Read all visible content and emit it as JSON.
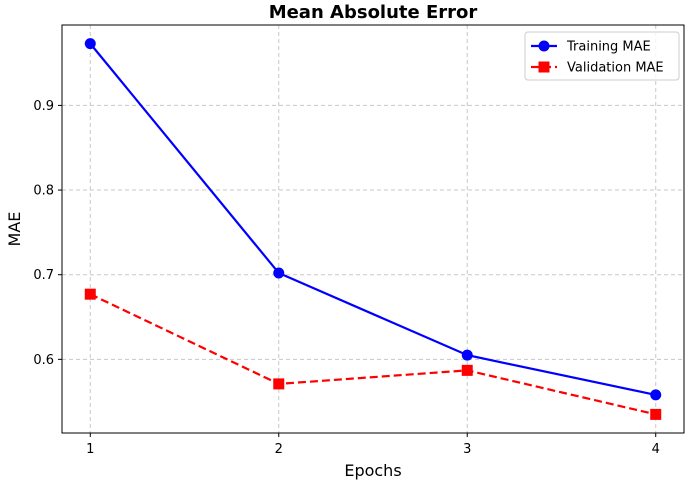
{
  "chart_data": {
    "type": "line",
    "title": "Mean Absolute Error",
    "xlabel": "Epochs",
    "ylabel": "MAE",
    "x": [
      1,
      2,
      3,
      4
    ],
    "xticks": [
      "1",
      "2",
      "3",
      "4"
    ],
    "yticks": [
      "0.6",
      "0.7",
      "0.8",
      "0.9"
    ],
    "xlim": [
      0.85,
      4.15
    ],
    "ylim": [
      0.513,
      0.995
    ],
    "grid": true,
    "legend_position": "top-right",
    "series": [
      {
        "name": "Training MAE",
        "values": [
          0.973,
          0.702,
          0.605,
          0.558
        ],
        "color": "#0000ff",
        "line_style": "solid",
        "marker": "circle"
      },
      {
        "name": "Validation MAE",
        "values": [
          0.677,
          0.571,
          0.587,
          0.535
        ],
        "color": "#ff0000",
        "line_style": "dashed",
        "marker": "square"
      }
    ]
  }
}
